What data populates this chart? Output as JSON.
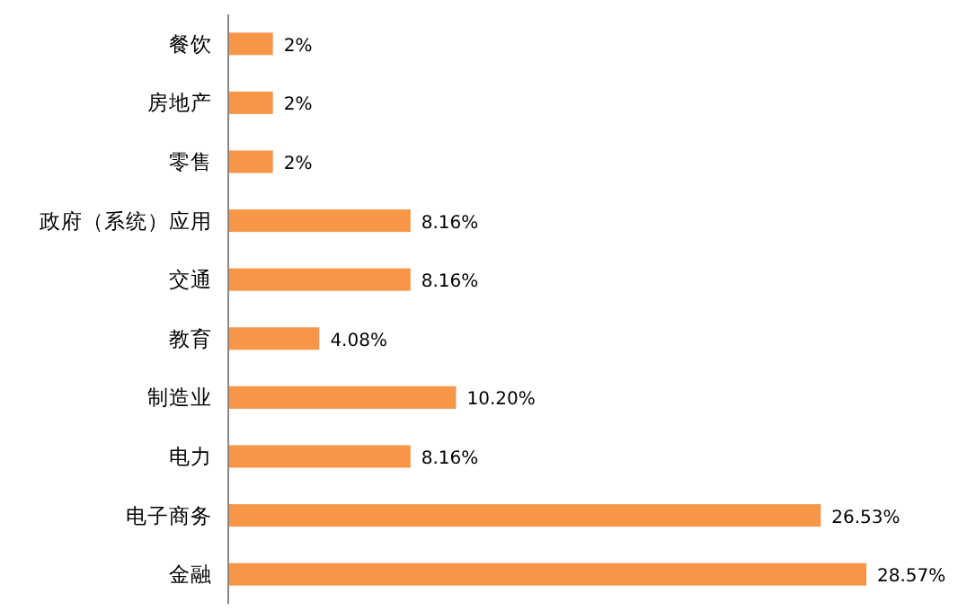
{
  "chart_data": {
    "type": "bar",
    "orientation": "horizontal",
    "categories": [
      "餐饮",
      "房地产",
      "零售",
      "政府（系统）应用",
      "交通",
      "教育",
      "制造业",
      "电力",
      "电子商务",
      "金融"
    ],
    "values": [
      2,
      2,
      2,
      8.16,
      8.16,
      4.08,
      10.2,
      8.16,
      26.53,
      28.57
    ],
    "value_labels": [
      "2%",
      "2%",
      "2%",
      "8.16%",
      "8.16%",
      "4.08%",
      "10.20%",
      "8.16%",
      "26.53%",
      "28.57%"
    ],
    "color": "#f79646"
  }
}
